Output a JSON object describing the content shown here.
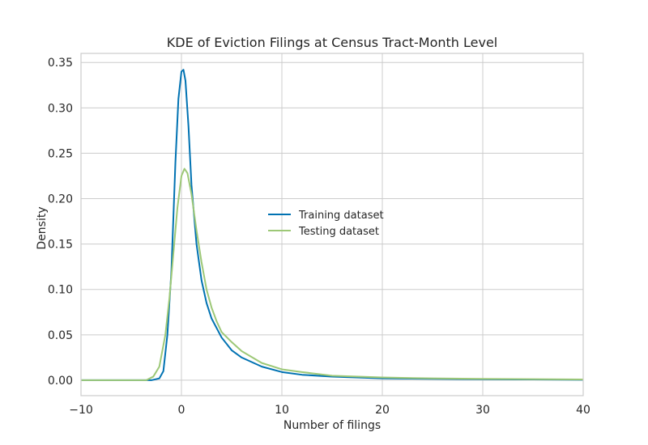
{
  "chart_data": {
    "type": "line",
    "title": "KDE of Eviction Filings at Census Tract-Month Level",
    "xlabel": "Number of filings",
    "ylabel": "Density",
    "xlim": [
      -10,
      40
    ],
    "ylim": [
      -0.017,
      0.36
    ],
    "xticks": [
      -10,
      0,
      10,
      20,
      30,
      40
    ],
    "xtick_labels": [
      "−10",
      "0",
      "10",
      "20",
      "30",
      "40"
    ],
    "yticks": [
      0.0,
      0.05,
      0.1,
      0.15,
      0.2,
      0.25,
      0.3,
      0.35
    ],
    "ytick_labels": [
      "0.00",
      "0.05",
      "0.10",
      "0.15",
      "0.20",
      "0.25",
      "0.30",
      "0.35"
    ],
    "grid": true,
    "legend_position": "center",
    "series": [
      {
        "name": "Training dataset",
        "color": "#0072b2",
        "x": [
          -10,
          -3,
          -2.2,
          -1.8,
          -1.4,
          -1.0,
          -0.6,
          -0.3,
          0,
          0.2,
          0.4,
          0.7,
          1.0,
          1.5,
          2.0,
          2.5,
          3.0,
          4.0,
          5.0,
          6.0,
          8.0,
          10.0,
          12.0,
          15.0,
          20.0,
          25.0,
          30.0,
          35.0,
          40.0
        ],
        "y": [
          0.0,
          0.0,
          0.002,
          0.01,
          0.05,
          0.12,
          0.24,
          0.31,
          0.34,
          0.342,
          0.33,
          0.28,
          0.215,
          0.15,
          0.11,
          0.085,
          0.068,
          0.047,
          0.033,
          0.025,
          0.015,
          0.009,
          0.006,
          0.004,
          0.002,
          0.0015,
          0.001,
          0.0008,
          0.0005
        ]
      },
      {
        "name": "Testing dataset",
        "color": "#9dc877",
        "x": [
          -10,
          -3.5,
          -2.8,
          -2.2,
          -1.6,
          -1.2,
          -0.8,
          -0.4,
          0,
          0.3,
          0.6,
          1.0,
          1.5,
          2.0,
          2.5,
          3.0,
          3.5,
          4.0,
          5.0,
          6.0,
          8.0,
          10.0,
          12.0,
          15.0,
          20.0,
          25.0,
          30.0,
          35.0,
          40.0
        ],
        "y": [
          0.0,
          0.0,
          0.004,
          0.015,
          0.05,
          0.09,
          0.14,
          0.19,
          0.225,
          0.233,
          0.228,
          0.205,
          0.165,
          0.13,
          0.1,
          0.08,
          0.065,
          0.053,
          0.042,
          0.032,
          0.019,
          0.012,
          0.009,
          0.005,
          0.003,
          0.002,
          0.0015,
          0.0012,
          0.0008
        ]
      }
    ]
  }
}
